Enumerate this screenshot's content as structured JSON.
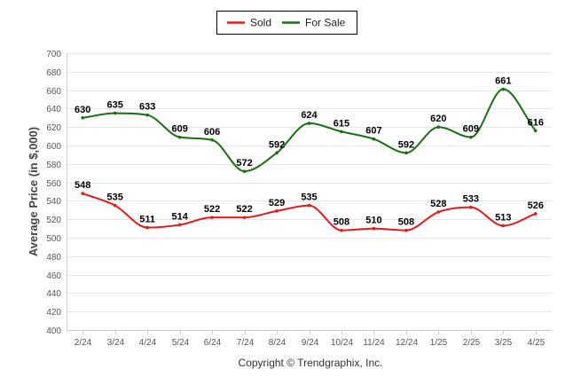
{
  "chart_data": {
    "type": "line",
    "title": "",
    "xlabel": "",
    "ylabel": "Average Price (in $,000)",
    "ylim": [
      400,
      700
    ],
    "yticks": [
      400,
      420,
      440,
      460,
      480,
      500,
      520,
      540,
      560,
      580,
      600,
      620,
      640,
      660,
      680,
      700
    ],
    "grid": true,
    "legend_position": "top-center",
    "categories": [
      "2/24",
      "3/24",
      "4/24",
      "5/24",
      "6/24",
      "7/24",
      "8/24",
      "9/24",
      "10/24",
      "11/24",
      "12/24",
      "1/25",
      "2/25",
      "3/25",
      "4/25"
    ],
    "series": [
      {
        "name": "Sold",
        "color": "#e31a1c",
        "values": [
          548,
          535,
          511,
          514,
          522,
          522,
          529,
          535,
          508,
          510,
          508,
          528,
          533,
          513,
          526
        ]
      },
      {
        "name": "For Sale",
        "color": "#1b6e12",
        "values": [
          630,
          635,
          633,
          609,
          606,
          572,
          592,
          624,
          615,
          607,
          592,
          620,
          609,
          661,
          616
        ]
      }
    ]
  },
  "footer": "Copyright © Trendgraphix, Inc."
}
